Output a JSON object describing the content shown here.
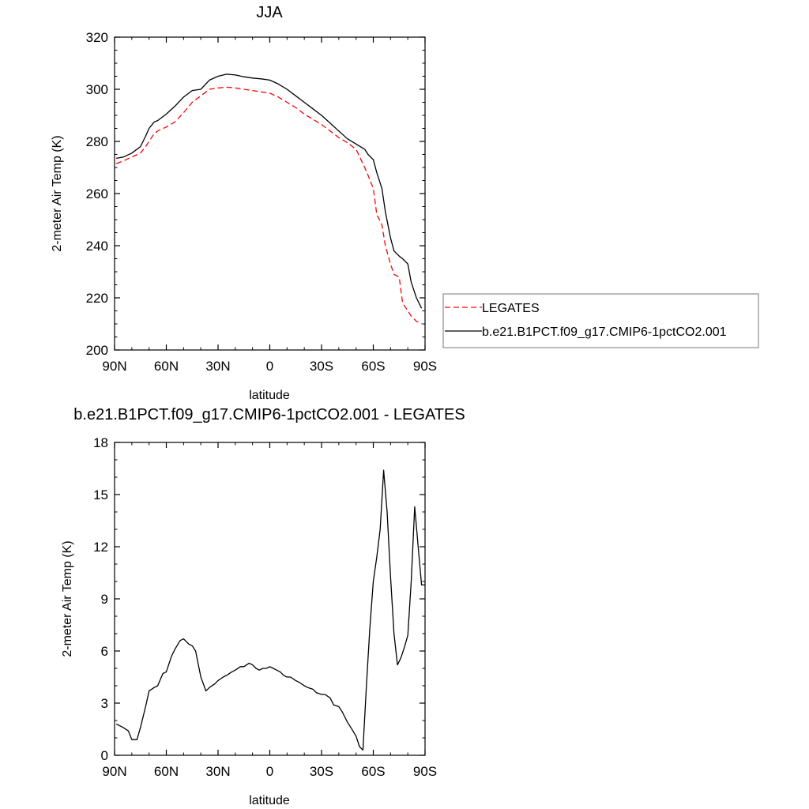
{
  "chart_data": [
    {
      "type": "line",
      "title": "JJA",
      "xlabel": "latitude",
      "ylabel": "2-meter Air Temp (K)",
      "xlim": [
        90,
        -90
      ],
      "ylim": [
        200,
        320
      ],
      "xticks": [
        90,
        60,
        30,
        0,
        -30,
        -60,
        -90
      ],
      "xtick_labels": [
        "90N",
        "60N",
        "30N",
        "0",
        "30S",
        "60S",
        "90S"
      ],
      "yticks": [
        200,
        220,
        240,
        260,
        280,
        300,
        320
      ],
      "ytick_labels": [
        "200",
        "220",
        "240",
        "260",
        "280",
        "300",
        "320"
      ],
      "legend_position": "right",
      "series": [
        {
          "name": "LEGATES",
          "color": "#ff0000",
          "style": "dashed",
          "x": [
            89,
            85,
            80,
            75,
            72,
            70,
            67,
            65,
            60,
            55,
            50,
            45,
            40,
            35,
            30,
            25,
            20,
            15,
            10,
            5,
            0,
            -5,
            -10,
            -15,
            -20,
            -25,
            -30,
            -35,
            -40,
            -45,
            -50,
            -55,
            -57,
            -60,
            -62,
            -65,
            -67,
            -70,
            -72,
            -75,
            -77,
            -80,
            -82,
            -85,
            -88
          ],
          "y": [
            271.5,
            272.5,
            274,
            275.5,
            278,
            280,
            283,
            284,
            285.5,
            287.5,
            291,
            295,
            297.5,
            300,
            300.5,
            300.8,
            300.5,
            300,
            299.5,
            299,
            298.5,
            297,
            295,
            293,
            290.5,
            288.5,
            286.5,
            284,
            281.5,
            279.5,
            277,
            270,
            267,
            262,
            252,
            248,
            240,
            233,
            229,
            228,
            218,
            215,
            213,
            211,
            210
          ]
        },
        {
          "name": "b.e21.B1PCT.f09_g17.CMIP6-1pctCO2.001",
          "color": "#000000",
          "style": "solid",
          "x": [
            89,
            85,
            80,
            75,
            72,
            70,
            67,
            65,
            60,
            55,
            50,
            45,
            40,
            35,
            30,
            25,
            20,
            15,
            10,
            5,
            0,
            -5,
            -10,
            -15,
            -20,
            -25,
            -30,
            -35,
            -40,
            -45,
            -50,
            -55,
            -57,
            -60,
            -62,
            -65,
            -67,
            -70,
            -72,
            -75,
            -77,
            -80,
            -82,
            -85,
            -88
          ],
          "y": [
            273.5,
            274,
            275.5,
            278,
            282,
            285,
            287.5,
            288,
            290.5,
            293.5,
            297,
            299.5,
            300,
            303.5,
            305,
            305.8,
            305.5,
            304.8,
            304.3,
            304,
            303.5,
            302,
            300,
            297.5,
            295,
            292.5,
            290,
            287,
            284,
            281,
            279,
            277,
            275,
            273,
            268,
            262,
            253,
            243,
            238,
            236,
            235,
            233,
            226,
            220,
            216
          ]
        }
      ]
    },
    {
      "type": "line",
      "title": "b.e21.B1PCT.f09_g17.CMIP6-1pctCO2.001 - LEGATES",
      "xlabel": "latitude",
      "ylabel": "2-meter Air Temp (K)",
      "xlim": [
        90,
        -90
      ],
      "ylim": [
        0,
        18
      ],
      "xticks": [
        90,
        60,
        30,
        0,
        -30,
        -60,
        -90
      ],
      "xtick_labels": [
        "90N",
        "60N",
        "30N",
        "0",
        "30S",
        "60S",
        "90S"
      ],
      "yticks": [
        0,
        3,
        6,
        9,
        12,
        15,
        18
      ],
      "ytick_labels": [
        "0",
        "3",
        "6",
        "9",
        "12",
        "15",
        "18"
      ],
      "series": [
        {
          "color": "#000000",
          "style": "solid",
          "x": [
            89,
            85,
            82,
            80,
            77,
            75,
            72,
            70,
            67,
            65,
            62,
            60,
            57,
            55,
            52,
            50,
            47,
            45,
            43,
            40,
            37,
            35,
            32,
            30,
            27,
            25,
            22,
            20,
            17,
            15,
            12,
            10,
            8,
            6,
            4,
            2,
            0,
            -2,
            -4,
            -6,
            -8,
            -10,
            -12,
            -15,
            -17,
            -20,
            -22,
            -25,
            -27,
            -30,
            -32,
            -35,
            -37,
            -40,
            -42,
            -45,
            -47,
            -50,
            -52,
            -54,
            -56,
            -58,
            -60,
            -62,
            -64,
            -66,
            -68,
            -70,
            -72,
            -74,
            -76,
            -78,
            -80,
            -82,
            -84,
            -86,
            -88,
            -90
          ],
          "y": [
            1.8,
            1.6,
            1.4,
            0.9,
            0.9,
            1.6,
            2.8,
            3.7,
            3.9,
            4.0,
            4.7,
            4.8,
            5.7,
            6.1,
            6.6,
            6.7,
            6.4,
            6.3,
            6.0,
            4.5,
            3.7,
            3.9,
            4.1,
            4.3,
            4.5,
            4.6,
            4.8,
            4.9,
            5.1,
            5.1,
            5.3,
            5.2,
            5.0,
            4.9,
            5.0,
            5.0,
            5.1,
            5.0,
            4.9,
            4.8,
            4.6,
            4.5,
            4.5,
            4.3,
            4.2,
            4.0,
            3.9,
            3.8,
            3.6,
            3.5,
            3.5,
            3.3,
            2.9,
            2.8,
            2.5,
            1.9,
            1.6,
            1.1,
            0.5,
            0.3,
            4.0,
            7.3,
            10.0,
            11.4,
            13.0,
            16.4,
            14.0,
            10.3,
            7.0,
            5.2,
            5.6,
            6.2,
            6.9,
            10.0,
            14.3,
            12.0,
            9.8,
            9.8
          ]
        }
      ]
    }
  ]
}
